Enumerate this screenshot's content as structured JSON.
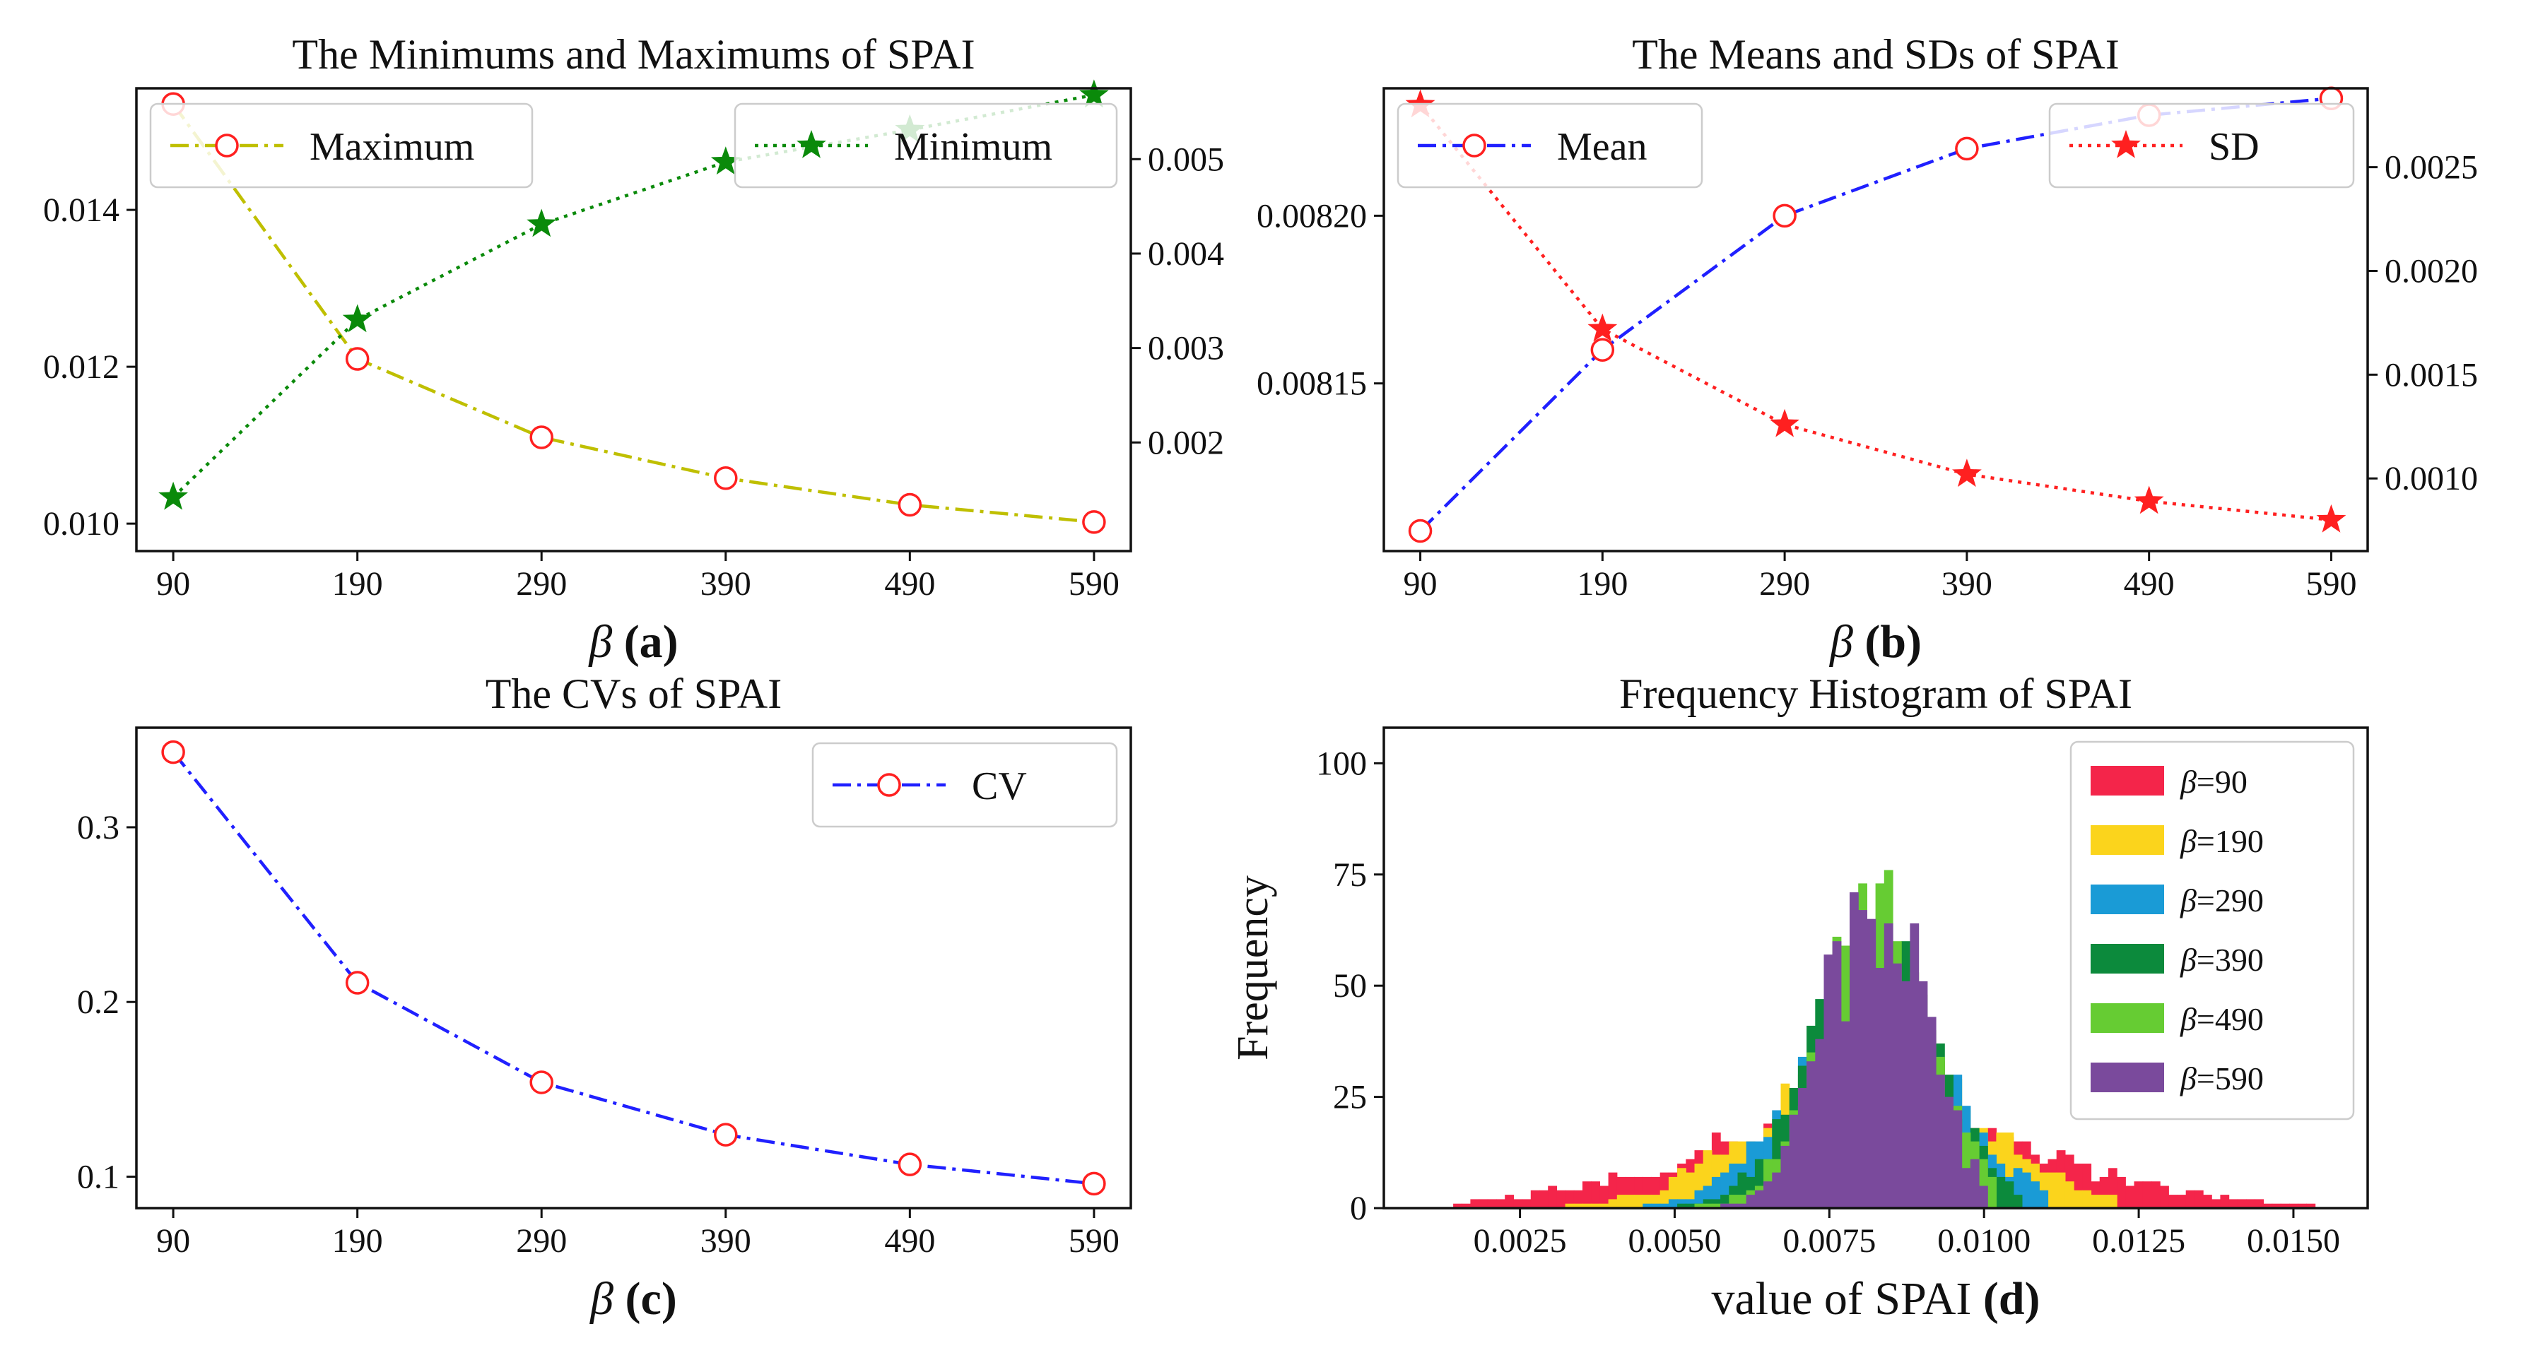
{
  "figure": {
    "background": "#ffffff"
  },
  "chart_data": [
    {
      "id": "a",
      "type": "line",
      "title": "The Minimums and Maximums of SPAI",
      "xlabel": "β (a)",
      "x": [
        90,
        190,
        290,
        390,
        490,
        590
      ],
      "xtick_labels": [
        "90",
        "190",
        "290",
        "390",
        "490",
        "590"
      ],
      "xlim": [
        70,
        610
      ],
      "left_axis": {
        "ylim": [
          0.00965,
          0.01555
        ],
        "ticks": [
          0.01,
          0.012,
          0.014
        ],
        "tick_labels": [
          "0.010",
          "0.012",
          "0.014"
        ]
      },
      "right_axis": {
        "ylim": [
          0.00085,
          0.00575
        ],
        "ticks": [
          0.002,
          0.003,
          0.004,
          0.005
        ],
        "tick_labels": [
          "0.002",
          "0.003",
          "0.004",
          "0.005"
        ]
      },
      "series": [
        {
          "name": "Maximum",
          "axis": "left",
          "values": [
            0.01535,
            0.0121,
            0.0111,
            0.01058,
            0.01024,
            0.01002
          ],
          "color": "#bfbf00",
          "marker_color": "#ff2020",
          "marker": "circle",
          "dash": "dashdot"
        },
        {
          "name": "Minimum",
          "axis": "right",
          "values": [
            0.00142,
            0.0033,
            0.00431,
            0.00497,
            0.00531,
            0.00568
          ],
          "color": "#0a8a0a",
          "marker_color": "#0a8a0a",
          "marker": "star",
          "dash": "dotted"
        }
      ],
      "legends": [
        {
          "series": 0,
          "position": "upper-left"
        },
        {
          "series": 1,
          "position": "upper-right"
        }
      ]
    },
    {
      "id": "b",
      "type": "line",
      "title": "The Means and SDs of SPAI",
      "xlabel": "β (b)",
      "x": [
        90,
        190,
        290,
        390,
        490,
        590
      ],
      "xtick_labels": [
        "90",
        "190",
        "290",
        "390",
        "490",
        "590"
      ],
      "xlim": [
        70,
        610
      ],
      "left_axis": {
        "ylim": [
          0.0081,
          0.008238
        ],
        "ticks": [
          0.00815,
          0.0082
        ],
        "tick_labels": [
          "0.00815",
          "0.00820"
        ]
      },
      "right_axis": {
        "ylim": [
          0.00065,
          0.00288
        ],
        "ticks": [
          0.001,
          0.0015,
          0.002,
          0.0025
        ],
        "tick_labels": [
          "0.0010",
          "0.0015",
          "0.0020",
          "0.0025"
        ]
      },
      "series": [
        {
          "name": "Mean",
          "axis": "left",
          "values": [
            0.008106,
            0.00816,
            0.0082,
            0.00822,
            0.00823,
            0.008235
          ],
          "color": "#2020ff",
          "marker_color": "#ff2020",
          "marker": "circle",
          "dash": "dashdot"
        },
        {
          "name": "SD",
          "axis": "right",
          "values": [
            0.0028,
            0.00172,
            0.00126,
            0.00102,
            0.00089,
            0.0008
          ],
          "color": "#ff2020",
          "marker_color": "#ff2020",
          "marker": "star",
          "dash": "dotted"
        }
      ],
      "legends": [
        {
          "series": 0,
          "position": "upper-left"
        },
        {
          "series": 1,
          "position": "upper-right"
        }
      ]
    },
    {
      "id": "c",
      "type": "line",
      "title": "The CVs of SPAI",
      "xlabel": "β (c)",
      "x": [
        90,
        190,
        290,
        390,
        490,
        590
      ],
      "xtick_labels": [
        "90",
        "190",
        "290",
        "390",
        "490",
        "590"
      ],
      "xlim": [
        70,
        610
      ],
      "left_axis": {
        "ylim": [
          0.082,
          0.357
        ],
        "ticks": [
          0.1,
          0.2,
          0.3
        ],
        "tick_labels": [
          "0.1",
          "0.2",
          "0.3"
        ]
      },
      "series": [
        {
          "name": "CV",
          "axis": "left",
          "values": [
            0.343,
            0.211,
            0.154,
            0.124,
            0.107,
            0.096
          ],
          "color": "#2020ff",
          "marker_color": "#ff2020",
          "marker": "circle",
          "dash": "dashdot"
        }
      ],
      "legends": [
        {
          "series": 0,
          "position": "upper-right"
        }
      ]
    },
    {
      "id": "d",
      "type": "histogram",
      "title": "Frequency Histogram  of SPAI",
      "xlabel": "value of SPAI (d)",
      "ylabel": "Frequency",
      "xlim": [
        0.0003,
        0.0162
      ],
      "ylim": [
        0,
        108
      ],
      "xticks": [
        0.0025,
        0.005,
        0.0075,
        0.01,
        0.0125,
        0.015
      ],
      "xtick_labels": [
        "0.0025",
        "0.0050",
        "0.0075",
        "0.0100",
        "0.0125",
        "0.0150"
      ],
      "yticks": [
        0,
        25,
        50,
        75,
        100
      ],
      "ytick_labels": [
        "0",
        "25",
        "50",
        "75",
        "100"
      ],
      "series": [
        {
          "name": "β=90",
          "label_beta": "β",
          "label_value": "=90",
          "color": "#f4254a",
          "min": 0.00142,
          "max": 0.01535,
          "mean": 0.008106,
          "sd": 0.0028
        },
        {
          "name": "β=190",
          "label_beta": "β",
          "label_value": "=190",
          "color": "#fbd41c",
          "min": 0.0033,
          "max": 0.0121,
          "mean": 0.00816,
          "sd": 0.00172
        },
        {
          "name": "β=290",
          "label_beta": "β",
          "label_value": "=290",
          "color": "#1a9bd6",
          "min": 0.00431,
          "max": 0.0111,
          "mean": 0.0082,
          "sd": 0.00126
        },
        {
          "name": "β=390",
          "label_beta": "β",
          "label_value": "=390",
          "color": "#0c8a3c",
          "min": 0.00497,
          "max": 0.01058,
          "mean": 0.00822,
          "sd": 0.00102
        },
        {
          "name": "β=490",
          "label_beta": "β",
          "label_value": "=490",
          "color": "#66cc33",
          "min": 0.00531,
          "max": 0.01024,
          "mean": 0.00823,
          "sd": 0.00089
        },
        {
          "name": "β=590",
          "label_beta": "β",
          "label_value": "=590",
          "color": "#7a4a9c",
          "min": 0.00568,
          "max": 0.01002,
          "mean": 0.008235,
          "sd": 0.0008
        }
      ],
      "bins": {
        "start": 0.00142,
        "end": 0.01535,
        "count": 100,
        "samples": 1000
      },
      "legends": [
        {
          "position": "upper-right"
        }
      ]
    }
  ]
}
